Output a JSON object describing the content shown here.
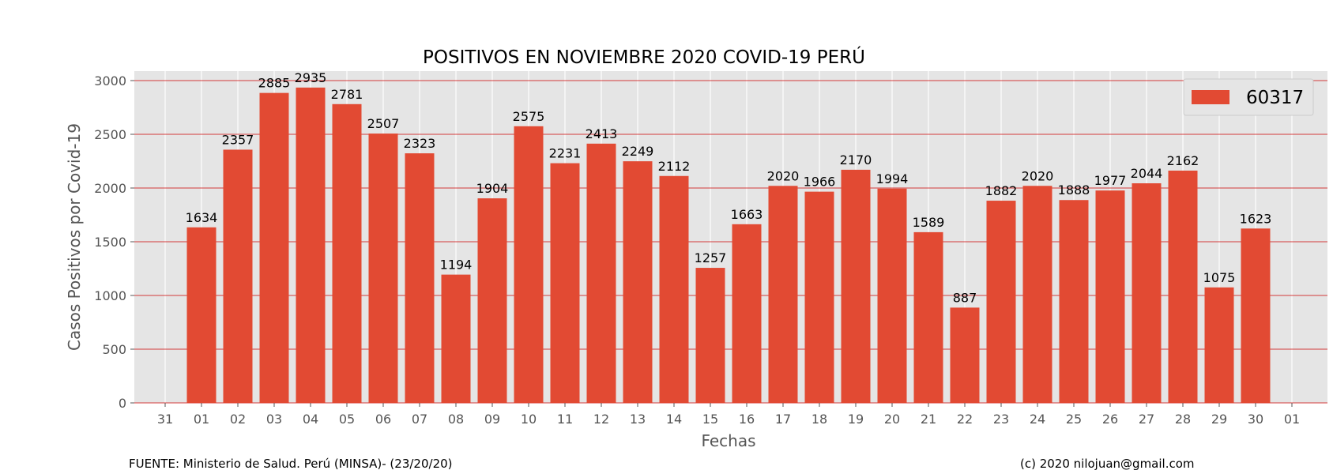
{
  "chart_data": {
    "type": "bar",
    "title": "POSITIVOS EN NOVIEMBRE 2020 COVID-19 PERÚ",
    "xlabel": "Fechas",
    "ylabel": "Casos Positivos por Covid-19",
    "ylim": [
      0,
      3000
    ],
    "yticks": [
      0,
      500,
      1000,
      1500,
      2000,
      2500,
      3000
    ],
    "x_tick_labels": [
      "31",
      "01",
      "02",
      "03",
      "04",
      "05",
      "06",
      "07",
      "08",
      "09",
      "10",
      "11",
      "12",
      "13",
      "14",
      "15",
      "16",
      "17",
      "18",
      "19",
      "20",
      "21",
      "22",
      "23",
      "24",
      "25",
      "26",
      "27",
      "28",
      "29",
      "30",
      "01"
    ],
    "categories": [
      "01",
      "02",
      "03",
      "04",
      "05",
      "06",
      "07",
      "08",
      "09",
      "10",
      "11",
      "12",
      "13",
      "14",
      "15",
      "16",
      "17",
      "18",
      "19",
      "20",
      "21",
      "22",
      "23",
      "24",
      "25",
      "26",
      "27",
      "28",
      "29",
      "30"
    ],
    "values": [
      1634,
      2357,
      2885,
      2935,
      2781,
      2507,
      2323,
      1194,
      1904,
      2575,
      2231,
      2413,
      2249,
      2112,
      1257,
      1663,
      2020,
      1966,
      2170,
      1994,
      1589,
      887,
      1882,
      2020,
      1888,
      1977,
      2044,
      2162,
      1075,
      1623
    ],
    "legend": {
      "label": "60317",
      "placement": "top-right"
    },
    "grid": true,
    "colors": {
      "bar": "#E24A33",
      "background": "#E5E5E5",
      "hgrid": "#CC0000",
      "vgrid": "#FFFFFF"
    }
  },
  "footer": {
    "source": "FUENTE: Ministerio de Salud. Perú (MINSA)- (23/20/20)",
    "credit": "(c) 2020 nilojuan@gmail.com"
  }
}
